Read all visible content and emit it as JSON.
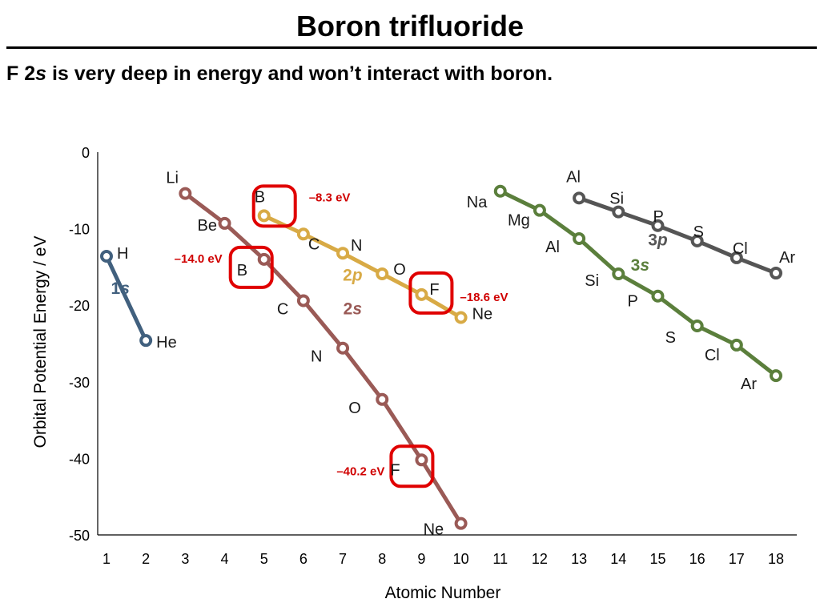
{
  "slide": {
    "title": "Boron trifluoride",
    "subtitle_prefix": "F 2",
    "subtitle_italic": "s",
    "subtitle_rest": " is very deep in energy and won’t interact with boron."
  },
  "colors": {
    "1s": "#41607e",
    "2s": "#9a5a56",
    "2p": "#d8aa45",
    "3s": "#5b7f3c",
    "3p": "#555555",
    "highlight": "#e00000"
  },
  "chart_data": {
    "type": "line",
    "xlabel": "Atomic Number",
    "ylabel": "Orbital Potential Energy / eV",
    "xlim": [
      1,
      18
    ],
    "ylim": [
      -50,
      0
    ],
    "x_ticks": [
      "1",
      "2",
      "3",
      "4",
      "5",
      "6",
      "7",
      "8",
      "9",
      "10",
      "11",
      "12",
      "13",
      "14",
      "15",
      "16",
      "17",
      "18"
    ],
    "y_ticks": [
      "0",
      "-10",
      "-20",
      "-30",
      "-40",
      "-50"
    ],
    "y_tick_values": [
      0,
      -10,
      -20,
      -30,
      -40,
      -50
    ],
    "series": [
      {
        "key": "1s",
        "name": "1s",
        "name_main": "1",
        "name_italic": "s",
        "x": [
          1,
          2
        ],
        "values": [
          -13.6,
          -24.6
        ],
        "labels": [
          "H",
          "He"
        ]
      },
      {
        "key": "2s",
        "name": "2s",
        "name_main": "2",
        "name_italic": "s",
        "x": [
          3,
          4,
          5,
          6,
          7,
          8,
          9,
          10
        ],
        "values": [
          -5.4,
          -9.3,
          -14.0,
          -19.4,
          -25.6,
          -32.3,
          -40.2,
          -48.5
        ],
        "labels": [
          "Li",
          "Be",
          "B",
          "C",
          "N",
          "O",
          "F",
          "Ne"
        ]
      },
      {
        "key": "2p",
        "name": "2p",
        "name_main": "2",
        "name_italic": "p",
        "x": [
          5,
          6,
          7,
          8,
          9,
          10
        ],
        "values": [
          -8.3,
          -10.7,
          -13.2,
          -15.9,
          -18.6,
          -21.6
        ],
        "labels": [
          "B",
          "C",
          "N",
          "O",
          "F",
          "Ne"
        ]
      },
      {
        "key": "3s",
        "name": "3s",
        "name_main": "3",
        "name_italic": "s",
        "x": [
          11,
          12,
          13,
          14,
          15,
          16,
          17,
          18
        ],
        "values": [
          -5.1,
          -7.6,
          -11.3,
          -15.9,
          -18.8,
          -22.7,
          -25.2,
          -29.2
        ],
        "labels": [
          "Na",
          "Mg",
          "Al",
          "Si",
          "P",
          "S",
          "Cl",
          "Ar"
        ]
      },
      {
        "key": "3p",
        "name": "3p",
        "name_main": "3",
        "name_italic": "p",
        "x": [
          13,
          14,
          15,
          16,
          17,
          18
        ],
        "values": [
          -6.0,
          -7.8,
          -9.6,
          -11.6,
          -13.8,
          -15.8
        ],
        "labels": [
          "Al",
          "Si",
          "P",
          "S",
          "Cl",
          "Ar"
        ]
      }
    ],
    "annotations": [
      {
        "text": "–8.3 eV",
        "x": 5,
        "y": -8.3,
        "series": "2p"
      },
      {
        "text": "–14.0 eV",
        "x": 5,
        "y": -14.0,
        "series": "2s"
      },
      {
        "text": "–18.6 eV",
        "x": 9,
        "y": -18.6,
        "series": "2p"
      },
      {
        "text": "–40.2 eV",
        "x": 9,
        "y": -40.2,
        "series": "2s"
      }
    ]
  }
}
